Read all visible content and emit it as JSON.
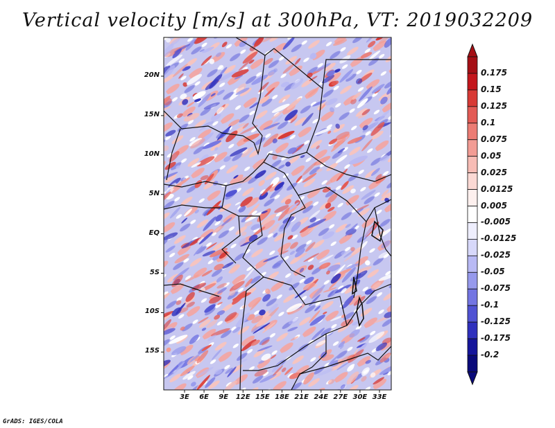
{
  "title": "Vertical velocity [m/s] at 300hPa, VT: 2019032209",
  "credit": "GrADS: IGES/COLA",
  "lat_labels": [
    "20N",
    "15N",
    "10N",
    "5N",
    "EQ",
    "5S",
    "10S",
    "15S"
  ],
  "lon_labels": [
    "3E",
    "6E",
    "9E",
    "12E",
    "15E",
    "18E",
    "21E",
    "24E",
    "27E",
    "30E",
    "33E"
  ],
  "colorbar": {
    "labels": [
      "0.175",
      "0.15",
      "0.125",
      "0.1",
      "0.075",
      "0.05",
      "0.025",
      "0.0125",
      "0.005",
      "-0.005",
      "-0.0125",
      "-0.025",
      "-0.05",
      "-0.075",
      "-0.1",
      "-0.125",
      "-0.175",
      "-0.2"
    ],
    "colors": [
      "#a50f15",
      "#c4161c",
      "#d83a35",
      "#e35b55",
      "#ec7c74",
      "#f29c94",
      "#f7bcb5",
      "#fbd9d4",
      "#fdf0ee",
      "#ffffff",
      "#eeeefd",
      "#d7d8fa",
      "#b8b9f4",
      "#9699ec",
      "#7375e2",
      "#5052d3",
      "#2f30bd",
      "#15159b",
      "#0a0a7a"
    ]
  }
}
